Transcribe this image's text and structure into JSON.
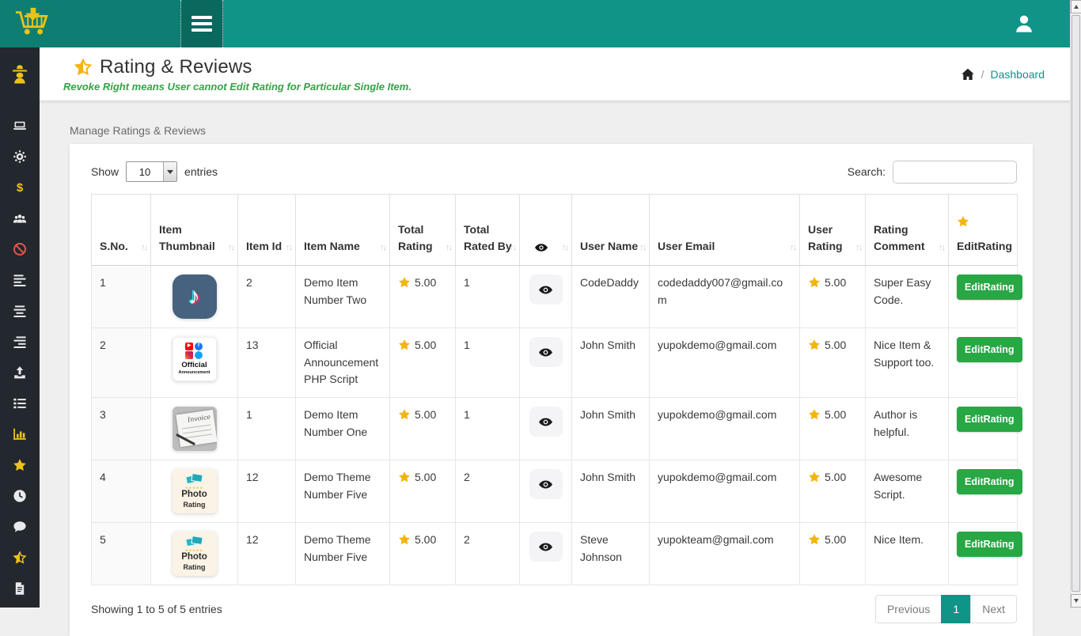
{
  "colors": {
    "topbar_teal": "#109488",
    "topbar_teal_dark": "#0d7e71",
    "topbar_teal_darker": "#09695e",
    "sidebar_bg": "#23272e",
    "accent_teal": "#0f9488",
    "success_green": "#28a745",
    "subtitle_green": "#37a146",
    "star_yellow": "#f2b50f",
    "icon_red": "#e2574c"
  },
  "icons": {
    "sort_glyph": "↑↓",
    "music_note": "♪",
    "play": "▶",
    "facebook_f": "f",
    "photo_stars": "★★★★★"
  },
  "header": {
    "title": "Rating & Reviews",
    "subtitle": "Revoke Right means User cannot Edit Rating for Particular Single Item.",
    "breadcrumb": {
      "separator": "/",
      "link": "Dashboard"
    }
  },
  "panel_title": "Manage Ratings & Reviews",
  "controls": {
    "show_label": "Show",
    "entries_value": "10",
    "entries_suffix": "entries",
    "search_label": "Search:",
    "search_value": ""
  },
  "table": {
    "columns": [
      {
        "label": "S.No.",
        "sortable": true
      },
      {
        "label": "Item Thumbnail",
        "sortable": true
      },
      {
        "label": "Item Id",
        "sortable": true
      },
      {
        "label": "Item Name",
        "sortable": true
      },
      {
        "label": "Total Rating",
        "sortable": true
      },
      {
        "label": "Total Rated By",
        "sortable": true
      },
      {
        "label": "",
        "icon": "eye-icon",
        "sortable": true
      },
      {
        "label": "User Name",
        "sortable": true
      },
      {
        "label": "User Email",
        "sortable": true
      },
      {
        "label": "User Rating",
        "sortable": true
      },
      {
        "label": "Rating Comment",
        "sortable": true
      },
      {
        "label": "EditRating",
        "icon": "star-icon",
        "sortable": false
      }
    ],
    "rows": [
      {
        "sno": "1",
        "thumb": {
          "type": "tiktok"
        },
        "item_id": "2",
        "item_name": "Demo Item Number Two",
        "total_rating": "5.00",
        "total_rated_by": "1",
        "user_name": "CodeDaddy",
        "user_email": "codedaddy007@gmail.com",
        "user_rating": "5.00",
        "rating_comment": "Super Easy Code.",
        "action_label": "EditRating"
      },
      {
        "sno": "2",
        "thumb": {
          "type": "official",
          "label": "Official",
          "sublabel": "Announcement"
        },
        "item_id": "13",
        "item_name": "Official Announcement PHP Script",
        "total_rating": "5.00",
        "total_rated_by": "1",
        "user_name": "John Smith",
        "user_email": "yupokdemo@gmail.com",
        "user_rating": "5.00",
        "rating_comment": "Nice Item & Support too.",
        "action_label": "EditRating"
      },
      {
        "sno": "3",
        "thumb": {
          "type": "invoice",
          "label": "Invoice"
        },
        "item_id": "1",
        "item_name": "Demo Item Number One",
        "total_rating": "5.00",
        "total_rated_by": "1",
        "user_name": "John Smith",
        "user_email": "yupokdemo@gmail.com",
        "user_rating": "5.00",
        "rating_comment": "Author is helpful.",
        "action_label": "EditRating"
      },
      {
        "sno": "4",
        "thumb": {
          "type": "photo",
          "label": "Photo",
          "sublabel": "Rating"
        },
        "item_id": "12",
        "item_name": "Demo Theme Number Five",
        "total_rating": "5.00",
        "total_rated_by": "2",
        "user_name": "John Smith",
        "user_email": "yupokdemo@gmail.com",
        "user_rating": "5.00",
        "rating_comment": "Awesome Script.",
        "action_label": "EditRating"
      },
      {
        "sno": "5",
        "thumb": {
          "type": "photo",
          "label": "Photo",
          "sublabel": "Rating"
        },
        "item_id": "12",
        "item_name": "Demo Theme Number Five",
        "total_rating": "5.00",
        "total_rated_by": "2",
        "user_name": "Steve Johnson",
        "user_email": "yupokteam@gmail.com",
        "user_rating": "5.00",
        "rating_comment": "Nice Item.",
        "action_label": "EditRating"
      }
    ]
  },
  "footer": {
    "showing_text": "Showing 1 to 5 of 5 entries",
    "pagination": {
      "previous_label": "Previous",
      "current_page": "1",
      "next_label": "Next"
    }
  },
  "sidebar": {
    "items": [
      {
        "icon": "user-secret-icon",
        "color": "yellow"
      },
      {
        "icon": "laptop-icon",
        "color": "white"
      },
      {
        "icon": "gear-icon",
        "color": "white"
      },
      {
        "icon": "dollar-icon",
        "color": "yellow"
      },
      {
        "icon": "users-icon",
        "color": "white"
      },
      {
        "icon": "ban-icon",
        "color": "red"
      },
      {
        "icon": "align-left-icon",
        "color": "white"
      },
      {
        "icon": "align-center-icon",
        "color": "white"
      },
      {
        "icon": "align-right-icon",
        "color": "white"
      },
      {
        "icon": "upload-icon",
        "color": "white"
      },
      {
        "icon": "list-icon",
        "color": "white"
      },
      {
        "icon": "bar-chart-icon",
        "color": "yellow"
      },
      {
        "icon": "star-icon",
        "color": "yellow"
      },
      {
        "icon": "clock-icon",
        "color": "white"
      },
      {
        "icon": "comment-icon",
        "color": "white"
      },
      {
        "icon": "star-half-icon",
        "color": "yellow"
      },
      {
        "icon": "file-text-icon",
        "color": "white"
      }
    ]
  }
}
